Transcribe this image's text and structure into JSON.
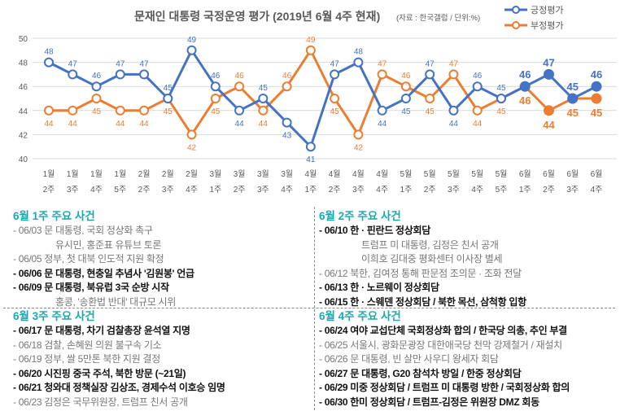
{
  "chart_data": {
    "type": "line",
    "title": "문재인 대통령 국정운영 평가 (2019년 6월 4주 현재)",
    "subtitle": "(자료 : 한국갤럽 / 단위:%)",
    "categories": [
      [
        "1월",
        "2주"
      ],
      [
        "1월",
        "3주"
      ],
      [
        "1월",
        "4주"
      ],
      [
        "1월",
        "5주"
      ],
      [
        "2월",
        "2주"
      ],
      [
        "2월",
        "3주"
      ],
      [
        "2월",
        "4주"
      ],
      [
        "3월",
        "1주"
      ],
      [
        "3월",
        "2주"
      ],
      [
        "3월",
        "3주"
      ],
      [
        "3월",
        "4주"
      ],
      [
        "4월",
        "1주"
      ],
      [
        "4월",
        "2주"
      ],
      [
        "4월",
        "3주"
      ],
      [
        "4월",
        "4주"
      ],
      [
        "5월",
        "1주"
      ],
      [
        "5월",
        "2주"
      ],
      [
        "5월",
        "3주"
      ],
      [
        "5월",
        "4주"
      ],
      [
        "5월",
        "5주"
      ],
      [
        "6월",
        "1주"
      ],
      [
        "6월",
        "2주"
      ],
      [
        "6월",
        "3주"
      ],
      [
        "6월",
        "4주"
      ]
    ],
    "series": [
      {
        "name": "긍정평가",
        "color": "#4472c4",
        "values": [
          48,
          47,
          46,
          47,
          47,
          45,
          49,
          46,
          44,
          45,
          43,
          41,
          47,
          48,
          44,
          45,
          47,
          44,
          46,
          45,
          46,
          47,
          45,
          46
        ]
      },
      {
        "name": "부정평가",
        "color": "#ed7d31",
        "values": [
          44,
          44,
          45,
          44,
          44,
          45,
          42,
          45,
          46,
          44,
          46,
          49,
          45,
          42,
          47,
          46,
          45,
          47,
          44,
          45,
          46,
          44,
          45,
          45
        ]
      }
    ],
    "highlight_last_n": 4,
    "ylim": [
      40,
      50
    ],
    "yticks": [
      40,
      42,
      44,
      46,
      48,
      50
    ],
    "grid": true,
    "legend": "top-right"
  },
  "events": {
    "w1": {
      "heading": "6월 1주 주요 사건",
      "lines": [
        {
          "t": "- 06/03 문 대통령, 국회 정상화 촉구",
          "b": false
        },
        {
          "t": "유시민, 홍준표 유튜브 토론",
          "b": false,
          "ind": true
        },
        {
          "t": "- 06/05 정부, 첫 대북 인도적 지원 확정",
          "b": false
        },
        {
          "t": "- 06/06 문 대통령, 현충일 추념사 '김원봉' 언급",
          "b": true
        },
        {
          "t": "- 06/09 문 대통령, 북유럽 3국 순방 시작",
          "b": true
        },
        {
          "t": "홍콩, '송환법 반대' 대규모 시위",
          "b": false,
          "ind": true
        }
      ]
    },
    "w2": {
      "heading": "6월 2주 주요 사건",
      "lines": [
        {
          "t": "- 06/10 한 · 핀란드 정상회담",
          "b": true
        },
        {
          "t": "트럼프 미 대통령, 김정은 친서 공개",
          "b": false,
          "ind": true
        },
        {
          "t": "이희호 김대중 평화센터 이사장 별세",
          "b": false,
          "ind": true
        },
        {
          "t": "- 06/12 북한, 김여정 통해 판문점 조의문 · 조화 전달",
          "b": false
        },
        {
          "t": "- 06/13 한 · 노르웨이 정상회담",
          "b": true
        },
        {
          "t": "- 06/15 한 · 스웨덴 정상회담 / 북한 목선, 삼척항 입항",
          "b": true
        }
      ]
    },
    "w3": {
      "heading": "6월 3주 주요 사건",
      "lines": [
        {
          "t": "- 06/17 문 대통령, 차기 검찰총장 윤석열 지명",
          "b": true
        },
        {
          "t": "- 06/18 검찰, 손혜원 의원 불구속 기소",
          "b": false
        },
        {
          "t": "- 06/19 정부, 쌀 5만톤 북한 지원 결정",
          "b": false
        },
        {
          "t": "- 06/20 시진핑 중국 주석, 북한 방문 (~21일)",
          "b": true
        },
        {
          "t": "- 06/21 청와대 정책실장 김상조, 경제수석 이호승 임명",
          "b": true
        },
        {
          "t": "- 06/23 김정은 국무위원장, 트럼프 친서 공개",
          "b": false
        }
      ]
    },
    "w4": {
      "heading": "6월 4주 주요 사건",
      "lines": [
        {
          "t": "- 06/24 여야 교섭단체 국회정상화 합의 / 한국당 의총, 추인 부결",
          "b": true
        },
        {
          "t": "- 06/25 서울시, 광화문광장 대한애국당 천막 강제철거 / 재설치",
          "b": false
        },
        {
          "t": "- 06/26 문 대통령, 빈 살만 사우디 왕세자 회담",
          "b": false
        },
        {
          "t": "- 06/27 문 대통령, G20 참석차 방일 / 한중 정상회담",
          "b": true
        },
        {
          "t": "- 06/29 미중 정상회담 / 트럼프 미 대통령 방한 / 국회정상화 합의",
          "b": true
        },
        {
          "t": "- 06/30 한미 정상회담 / 트럼프-김정은 위원장 DMZ 회동",
          "b": true
        }
      ]
    }
  }
}
